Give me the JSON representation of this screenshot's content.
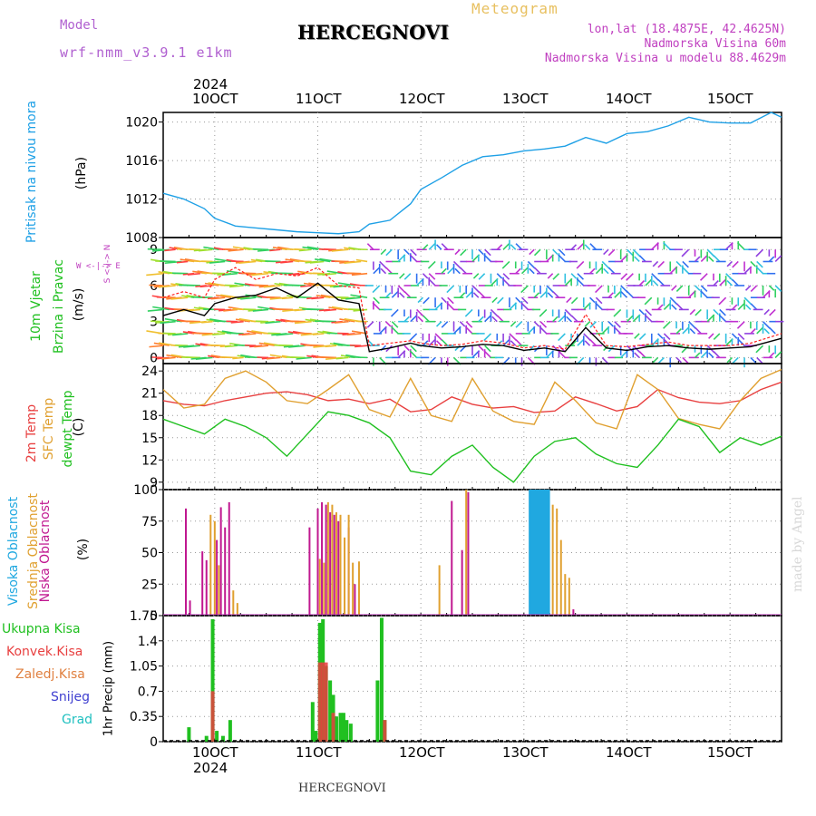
{
  "header": {
    "model_label": "Model",
    "model_value": "wrf-nmm_v3.9.1 e1km",
    "title": "HERCEGNOVI",
    "meteogram_label": "Meteogram",
    "lonlat": "lon,lat (18.4875E, 42.4625N)",
    "altitude": "Nadmorska Visina 60m",
    "model_altitude": "Nadmorska Visina u modelu 88.4629m",
    "footer_title": "HERCEGNOVI",
    "watermark": "made by Angel"
  },
  "colors": {
    "pressure": "#1ea0e6",
    "wind_speed": "#000000",
    "wind_gust": "#ff2020",
    "temp2m": "#e84040",
    "sfc_temp": "#e0a030",
    "dewpoint": "#20c020",
    "high_cloud": "#20a8e0",
    "mid_cloud": "#e0a030",
    "low_cloud": "#c01890",
    "total_precip": "#20c020",
    "conv_precip": "#e84040",
    "snow": "#4040d0",
    "graupel": "#20c0c0",
    "frozen": "#e08040",
    "grid": "#999999",
    "wind_label": "#c040c0"
  },
  "time_axis": {
    "top_year": "2024",
    "bottom_year": "2024",
    "ticks": [
      "10OCT",
      "11OCT",
      "12OCT",
      "13OCT",
      "14OCT",
      "15OCT"
    ]
  },
  "panel_labels": {
    "pressure_title": "Pritisak na nivou mora",
    "pressure_unit": "(hPa)",
    "wind_title1": "10m Vjetar",
    "wind_title2": "Brzina i Pravac",
    "wind_unit": "(m/s)",
    "wind_rose_ns": "S <-|-> N",
    "wind_rose_we": "W <-|-> E",
    "temp_title1": "2m Temp",
    "temp_title2": "SFC Temp",
    "temp_title3": "dewpt Temp",
    "temp_unit": "(C)",
    "cloud_title1": "Visoka Oblacnost",
    "cloud_title2": "Srednja Oblacnost",
    "cloud_title3": "Niska Oblacnost",
    "cloud_unit": "(%)",
    "precip_title": "1hr Precip (mm)",
    "precip_legend": [
      "Ukupna Kisa",
      "Konvek.Kisa",
      "Zaledj.Kisa",
      "Snijeg",
      "Grad"
    ]
  },
  "chart_data": [
    {
      "type": "line",
      "panel": "pressure",
      "x_range_days": [
        9.5,
        15.5
      ],
      "ylim": [
        1008,
        1021
      ],
      "yticks": [
        "1008",
        "1012",
        "1016",
        "1020"
      ],
      "grid": true,
      "series": [
        {
          "x": [
            9.5,
            9.7,
            9.9,
            10.0,
            10.2,
            10.4,
            10.6,
            10.8,
            11.0,
            11.2,
            11.4,
            11.5,
            11.7,
            11.9,
            12.0,
            12.2,
            12.4,
            12.6,
            12.8,
            13.0,
            13.2,
            13.4,
            13.6,
            13.8,
            14.0,
            14.2,
            14.4,
            14.6,
            14.8,
            15.0,
            15.2,
            15.4,
            15.5
          ],
          "y": [
            1012.6,
            1012.0,
            1011.0,
            1010.0,
            1009.2,
            1009.0,
            1008.8,
            1008.6,
            1008.5,
            1008.4,
            1008.6,
            1009.4,
            1009.8,
            1011.5,
            1013.0,
            1014.2,
            1015.5,
            1016.4,
            1016.6,
            1017.0,
            1017.2,
            1017.5,
            1018.4,
            1017.8,
            1018.8,
            1019.0,
            1019.6,
            1020.5,
            1020.0,
            1019.9,
            1019.9,
            1021.0,
            1020.5
          ]
        }
      ]
    },
    {
      "type": "line",
      "panel": "wind",
      "x_range_days": [
        9.5,
        15.5
      ],
      "ylim": [
        -0.5,
        10
      ],
      "yticks": [
        "0",
        "3",
        "6",
        "9"
      ],
      "grid": true,
      "series": [
        {
          "name": "speed",
          "x": [
            9.5,
            9.7,
            9.9,
            10.0,
            10.2,
            10.4,
            10.6,
            10.8,
            11.0,
            11.2,
            11.4,
            11.5,
            11.7,
            11.9,
            12.0,
            12.2,
            12.4,
            12.6,
            12.8,
            13.0,
            13.2,
            13.4,
            13.6,
            13.8,
            14.0,
            14.2,
            14.4,
            14.6,
            14.8,
            15.0,
            15.2,
            15.5
          ],
          "y": [
            3.5,
            4.0,
            3.5,
            4.5,
            5.0,
            5.2,
            5.8,
            5.0,
            6.2,
            4.8,
            4.5,
            0.5,
            0.8,
            1.2,
            1.0,
            0.8,
            0.9,
            1.1,
            1.0,
            0.6,
            0.8,
            0.5,
            2.5,
            0.8,
            0.6,
            0.9,
            1.0,
            0.8,
            0.7,
            0.8,
            0.9,
            1.6
          ]
        },
        {
          "name": "gust",
          "x": [
            9.5,
            9.7,
            9.9,
            10.0,
            10.2,
            10.4,
            10.6,
            10.8,
            11.0,
            11.2,
            11.4,
            11.5,
            11.7,
            11.9,
            12.0,
            12.2,
            12.4,
            12.6,
            12.8,
            13.0,
            13.2,
            13.4,
            13.6,
            13.8,
            14.0,
            14.2,
            14.4,
            14.6,
            14.8,
            15.0,
            15.2,
            15.5
          ],
          "y": [
            5.0,
            5.5,
            5.0,
            6.5,
            7.5,
            6.5,
            7.0,
            6.8,
            7.5,
            6.0,
            5.8,
            1.0,
            1.2,
            1.4,
            1.2,
            1.0,
            1.1,
            1.4,
            1.2,
            0.8,
            1.0,
            0.7,
            3.6,
            1.0,
            0.9,
            1.1,
            1.3,
            1.0,
            1.0,
            1.0,
            1.2,
            2.0
          ]
        }
      ]
    },
    {
      "type": "line",
      "panel": "temperature",
      "x_range_days": [
        9.5,
        15.5
      ],
      "ylim": [
        8,
        25
      ],
      "yticks": [
        "9",
        "12",
        "15",
        "18",
        "21",
        "24"
      ],
      "grid": true,
      "series": [
        {
          "name": "2m Temp",
          "x": [
            9.5,
            9.7,
            9.9,
            10.1,
            10.3,
            10.5,
            10.7,
            10.9,
            11.1,
            11.3,
            11.5,
            11.7,
            11.9,
            12.1,
            12.3,
            12.5,
            12.7,
            12.9,
            13.1,
            13.3,
            13.5,
            13.7,
            13.9,
            14.1,
            14.3,
            14.5,
            14.7,
            14.9,
            15.1,
            15.3,
            15.5
          ],
          "y": [
            20.0,
            19.5,
            19.3,
            20.0,
            20.5,
            21.0,
            21.2,
            20.8,
            20.0,
            20.2,
            19.6,
            20.2,
            18.5,
            18.8,
            20.5,
            19.5,
            19.0,
            19.2,
            18.4,
            18.6,
            20.5,
            19.6,
            18.6,
            19.2,
            21.5,
            20.4,
            19.8,
            19.6,
            20.0,
            21.5,
            22.5
          ]
        },
        {
          "name": "SFC Temp",
          "x": [
            9.5,
            9.7,
            9.9,
            10.1,
            10.3,
            10.5,
            10.7,
            10.9,
            11.1,
            11.3,
            11.5,
            11.7,
            11.9,
            12.1,
            12.3,
            12.5,
            12.7,
            12.9,
            13.1,
            13.3,
            13.5,
            13.7,
            13.9,
            14.1,
            14.3,
            14.5,
            14.7,
            14.9,
            15.1,
            15.3,
            15.5
          ],
          "y": [
            21.5,
            19.0,
            19.5,
            23.0,
            24.0,
            22.5,
            20.0,
            19.6,
            21.5,
            23.5,
            18.8,
            17.8,
            23.0,
            18.0,
            17.2,
            23.0,
            18.6,
            17.2,
            16.8,
            22.5,
            20.0,
            17.0,
            16.2,
            23.5,
            21.5,
            17.6,
            16.8,
            16.2,
            20.0,
            23.0,
            24.2
          ]
        },
        {
          "name": "dewpt Temp",
          "x": [
            9.5,
            9.7,
            9.9,
            10.1,
            10.3,
            10.5,
            10.7,
            10.9,
            11.1,
            11.3,
            11.5,
            11.7,
            11.9,
            12.1,
            12.3,
            12.5,
            12.7,
            12.9,
            13.1,
            13.3,
            13.5,
            13.7,
            13.9,
            14.1,
            14.3,
            14.5,
            14.7,
            14.9,
            15.1,
            15.3,
            15.5
          ],
          "y": [
            17.5,
            16.5,
            15.5,
            17.5,
            16.5,
            15.0,
            12.5,
            15.5,
            18.5,
            18.0,
            17.0,
            15.0,
            10.5,
            10.0,
            12.5,
            14.0,
            11.0,
            9.0,
            12.5,
            14.5,
            15.0,
            12.8,
            11.5,
            11.0,
            14.0,
            17.5,
            16.5,
            13.0,
            15.0,
            14.0,
            15.2
          ]
        }
      ]
    },
    {
      "type": "bar",
      "panel": "cloud",
      "x_range_days": [
        9.5,
        15.5
      ],
      "ylim": [
        0,
        100
      ],
      "yticks": [
        "0",
        "25",
        "50",
        "75",
        "100"
      ],
      "grid": true,
      "series": [
        {
          "name": "Niska Oblacnost",
          "x": [
            9.72,
            9.76,
            9.88,
            9.92,
            10.02,
            10.06,
            10.1,
            10.14,
            10.92,
            11.0,
            11.04,
            11.08,
            11.12,
            11.16,
            11.2,
            11.3,
            11.36,
            12.3,
            12.4,
            12.46,
            13.48
          ],
          "y": [
            85,
            12,
            51,
            44,
            60,
            86,
            70,
            90,
            70,
            85,
            90,
            88,
            82,
            80,
            75,
            70,
            25,
            91,
            52,
            98,
            5
          ]
        },
        {
          "name": "Srednja Oblacnost",
          "x": [
            9.96,
            10.0,
            10.04,
            10.18,
            10.22,
            11.02,
            11.06,
            11.1,
            11.14,
            11.18,
            11.22,
            11.26,
            11.3,
            11.34,
            11.4,
            12.18,
            12.44,
            13.08,
            13.12,
            13.16,
            13.2,
            13.24,
            13.28,
            13.32,
            13.36,
            13.4,
            13.44
          ],
          "y": [
            80,
            75,
            40,
            20,
            10,
            45,
            42,
            90,
            88,
            82,
            80,
            62,
            80,
            42,
            43,
            40,
            100,
            100,
            100,
            100,
            98,
            100,
            88,
            85,
            60,
            33,
            30
          ]
        },
        {
          "name": "Visoka Oblacnost",
          "x": [
            13.06,
            13.08,
            13.1,
            13.12,
            13.14,
            13.16,
            13.18,
            13.2,
            13.22,
            13.24
          ],
          "y": [
            100,
            100,
            100,
            100,
            100,
            100,
            100,
            100,
            100,
            100
          ]
        }
      ]
    },
    {
      "type": "bar",
      "panel": "precip",
      "x_range_days": [
        9.5,
        15.5
      ],
      "ylim": [
        0,
        1.75
      ],
      "yticks": [
        "0",
        "0.35",
        "0.7",
        "1.05",
        "1.4",
        "1.75"
      ],
      "grid": true,
      "series": [
        {
          "name": "Ukupna Kisa",
          "x": [
            9.75,
            9.92,
            9.98,
            10.02,
            10.08,
            10.15,
            10.95,
            10.98,
            11.02,
            11.05,
            11.08,
            11.12,
            11.15,
            11.18,
            11.22,
            11.25,
            11.28,
            11.32,
            11.58,
            11.62,
            11.65
          ],
          "y": [
            0.2,
            0.08,
            1.7,
            0.15,
            0.08,
            0.3,
            0.55,
            0.15,
            1.65,
            1.7,
            1.05,
            0.85,
            0.65,
            0.35,
            0.4,
            0.4,
            0.3,
            0.25,
            0.85,
            1.72,
            0.3
          ]
        },
        {
          "name": "Konvek.Kisa",
          "x": [
            9.98,
            11.02,
            11.05,
            11.08,
            11.15,
            11.65
          ],
          "y": [
            0.7,
            1.1,
            1.1,
            1.1,
            0.4,
            0.3
          ]
        }
      ]
    }
  ]
}
